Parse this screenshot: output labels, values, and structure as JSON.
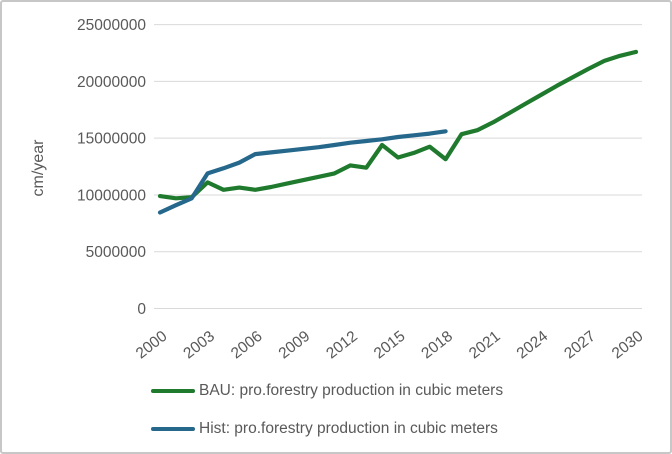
{
  "chart_data": {
    "type": "line",
    "title": "",
    "xlabel": "",
    "ylabel": "cm/year",
    "ylim": [
      0,
      25000000
    ],
    "yticks": [
      0,
      5000000,
      10000000,
      15000000,
      20000000,
      25000000
    ],
    "xlim": [
      2000,
      2030
    ],
    "xticks": [
      2000,
      2003,
      2006,
      2009,
      2012,
      2015,
      2018,
      2021,
      2024,
      2027,
      2030
    ],
    "grid": "horizontal",
    "gridline_color": "#d9d9d9",
    "axis_text_color": "#595959",
    "legend_position": "bottom-left",
    "series": [
      {
        "name": "BAU: pro.forestry production in cubic meters",
        "color": "#1f7a2e",
        "x": [
          2000,
          2001,
          2002,
          2003,
          2004,
          2005,
          2006,
          2007,
          2008,
          2009,
          2010,
          2011,
          2012,
          2013,
          2014,
          2015,
          2016,
          2017,
          2018,
          2019,
          2020,
          2021,
          2022,
          2023,
          2024,
          2025,
          2026,
          2027,
          2028,
          2029,
          2030
        ],
        "values": [
          9900000,
          9700000,
          9800000,
          11100000,
          10450000,
          10650000,
          10450000,
          10700000,
          11000000,
          11300000,
          11600000,
          11900000,
          12600000,
          12400000,
          14400000,
          13300000,
          13700000,
          14250000,
          13150000,
          15350000,
          15700000,
          16400000,
          17200000,
          18000000,
          18800000,
          19600000,
          20350000,
          21100000,
          21800000,
          22250000,
          22600000
        ]
      },
      {
        "name": "Hist: pro.forestry production in cubic meters",
        "color": "#26688c",
        "x": [
          2000,
          2001,
          2002,
          2003,
          2004,
          2005,
          2006,
          2007,
          2008,
          2009,
          2010,
          2011,
          2012,
          2013,
          2014,
          2015,
          2016,
          2017,
          2018
        ],
        "values": [
          8450000,
          9100000,
          9700000,
          11900000,
          12350000,
          12850000,
          13600000,
          13750000,
          13900000,
          14050000,
          14200000,
          14400000,
          14600000,
          14750000,
          14900000,
          15100000,
          15250000,
          15400000,
          15600000
        ]
      }
    ]
  }
}
